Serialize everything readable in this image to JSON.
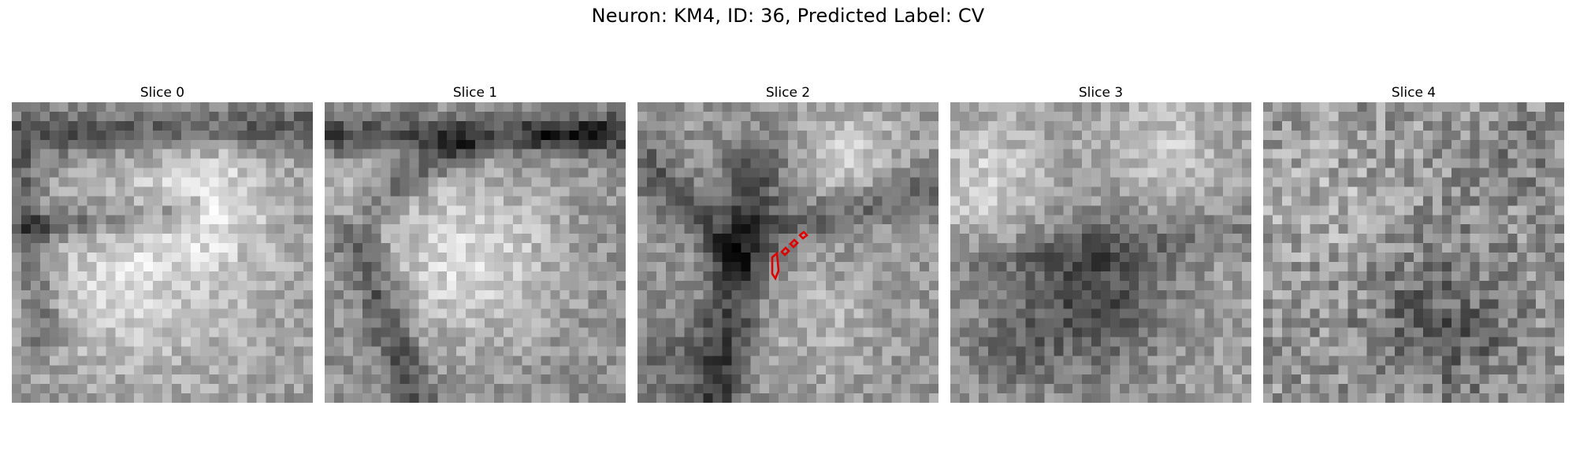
{
  "figure": {
    "title": "Neuron: KM4, ID: 36, Predicted Label: CV"
  },
  "slices": [
    {
      "title": "Slice 0",
      "seed": 11,
      "pattern": "cell_top_right"
    },
    {
      "title": "Slice 1",
      "seed": 27,
      "pattern": "cell_center"
    },
    {
      "title": "Slice 2",
      "seed": 43,
      "pattern": "dark_cross",
      "overlay": "red-contour"
    },
    {
      "title": "Slice 3",
      "seed": 59,
      "pattern": "dark_bottom"
    },
    {
      "title": "Slice 4",
      "seed": 71,
      "pattern": "noise_dark_bottom_right"
    }
  ],
  "overlay_color": "#e00000"
}
